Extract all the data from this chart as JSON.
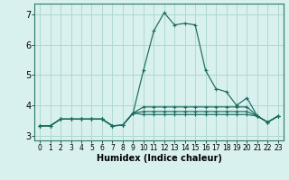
{
  "title": "",
  "xlabel": "Humidex (Indice chaleur)",
  "background_color": "#d8f0ee",
  "grid_color": "#b0d8d4",
  "line_color": "#1a6b5e",
  "spine_color": "#2a7a6a",
  "xlim": [
    -0.5,
    23.5
  ],
  "ylim": [
    2.85,
    7.35
  ],
  "yticks": [
    3,
    4,
    5,
    6,
    7
  ],
  "xtick_labels": [
    "0",
    "1",
    "2",
    "3",
    "4",
    "5",
    "6",
    "7",
    "8",
    "9",
    "10",
    "11",
    "12",
    "13",
    "14",
    "15",
    "16",
    "17",
    "18",
    "19",
    "20",
    "21",
    "22",
    "23"
  ],
  "series": [
    [
      3.33,
      3.33,
      3.55,
      3.55,
      3.55,
      3.55,
      3.55,
      3.33,
      3.35,
      3.75,
      5.15,
      6.45,
      7.05,
      6.65,
      6.7,
      6.65,
      5.15,
      4.55,
      4.45,
      4.0,
      4.25,
      3.65,
      3.45,
      3.65
    ],
    [
      3.33,
      3.33,
      3.55,
      3.55,
      3.55,
      3.55,
      3.55,
      3.33,
      3.35,
      3.75,
      3.95,
      3.95,
      3.95,
      3.95,
      3.95,
      3.95,
      3.95,
      3.95,
      3.95,
      3.95,
      3.95,
      3.65,
      3.45,
      3.65
    ],
    [
      3.33,
      3.33,
      3.55,
      3.55,
      3.55,
      3.55,
      3.55,
      3.33,
      3.35,
      3.75,
      3.8,
      3.8,
      3.8,
      3.8,
      3.8,
      3.8,
      3.8,
      3.8,
      3.8,
      3.8,
      3.8,
      3.65,
      3.45,
      3.65
    ],
    [
      3.33,
      3.33,
      3.55,
      3.55,
      3.55,
      3.55,
      3.55,
      3.33,
      3.35,
      3.75,
      3.7,
      3.7,
      3.7,
      3.7,
      3.7,
      3.7,
      3.7,
      3.7,
      3.7,
      3.7,
      3.7,
      3.65,
      3.45,
      3.65
    ]
  ]
}
